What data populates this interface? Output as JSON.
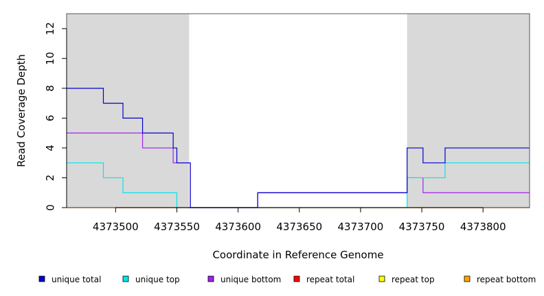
{
  "chart_data": {
    "type": "line",
    "xlabel": "Coordinate in Reference Genome",
    "ylabel": "Read Coverage Depth",
    "xlim": [
      4373460,
      4373838
    ],
    "ylim": [
      0,
      13
    ],
    "x_ticks": [
      4373500,
      4373550,
      4373600,
      4373650,
      4373700,
      4373750,
      4373800
    ],
    "y_ticks": [
      0,
      2,
      4,
      6,
      8,
      10,
      12
    ],
    "shaded_regions": [
      [
        4373460,
        4373560
      ],
      [
        4373738,
        4373838
      ]
    ],
    "legend_position": "bottom",
    "series": [
      {
        "name": "unique total",
        "color": "#0000cd",
        "steps": [
          [
            4373460,
            8
          ],
          [
            4373490,
            7
          ],
          [
            4373506,
            6
          ],
          [
            4373522,
            5
          ],
          [
            4373547,
            4
          ],
          [
            4373550,
            3
          ],
          [
            4373561,
            0
          ],
          [
            4373616,
            1
          ],
          [
            4373738,
            4
          ],
          [
            4373751,
            3
          ],
          [
            4373769,
            4
          ],
          [
            4373838,
            4
          ]
        ]
      },
      {
        "name": "unique top",
        "color": "#00e5ee",
        "steps": [
          [
            4373460,
            3
          ],
          [
            4373490,
            2
          ],
          [
            4373506,
            1
          ],
          [
            4373550,
            0
          ],
          [
            4373738,
            2
          ],
          [
            4373769,
            3
          ],
          [
            4373838,
            3
          ]
        ]
      },
      {
        "name": "unique bottom",
        "color": "#a020f0",
        "steps": [
          [
            4373460,
            5
          ],
          [
            4373522,
            4
          ],
          [
            4373547,
            3
          ],
          [
            4373550,
            3
          ],
          [
            4373561,
            0
          ],
          [
            4373616,
            1
          ],
          [
            4373738,
            2
          ],
          [
            4373751,
            1
          ],
          [
            4373838,
            1
          ]
        ]
      },
      {
        "name": "repeat total",
        "color": "#ff0000",
        "steps": [
          [
            4373460,
            0
          ],
          [
            4373838,
            0
          ]
        ]
      },
      {
        "name": "repeat top",
        "color": "#ffff00",
        "steps": [
          [
            4373460,
            0
          ],
          [
            4373838,
            0
          ]
        ]
      },
      {
        "name": "repeat bottom",
        "color": "#ffa500",
        "steps": [
          [
            4373460,
            0
          ],
          [
            4373838,
            0
          ]
        ]
      }
    ]
  }
}
